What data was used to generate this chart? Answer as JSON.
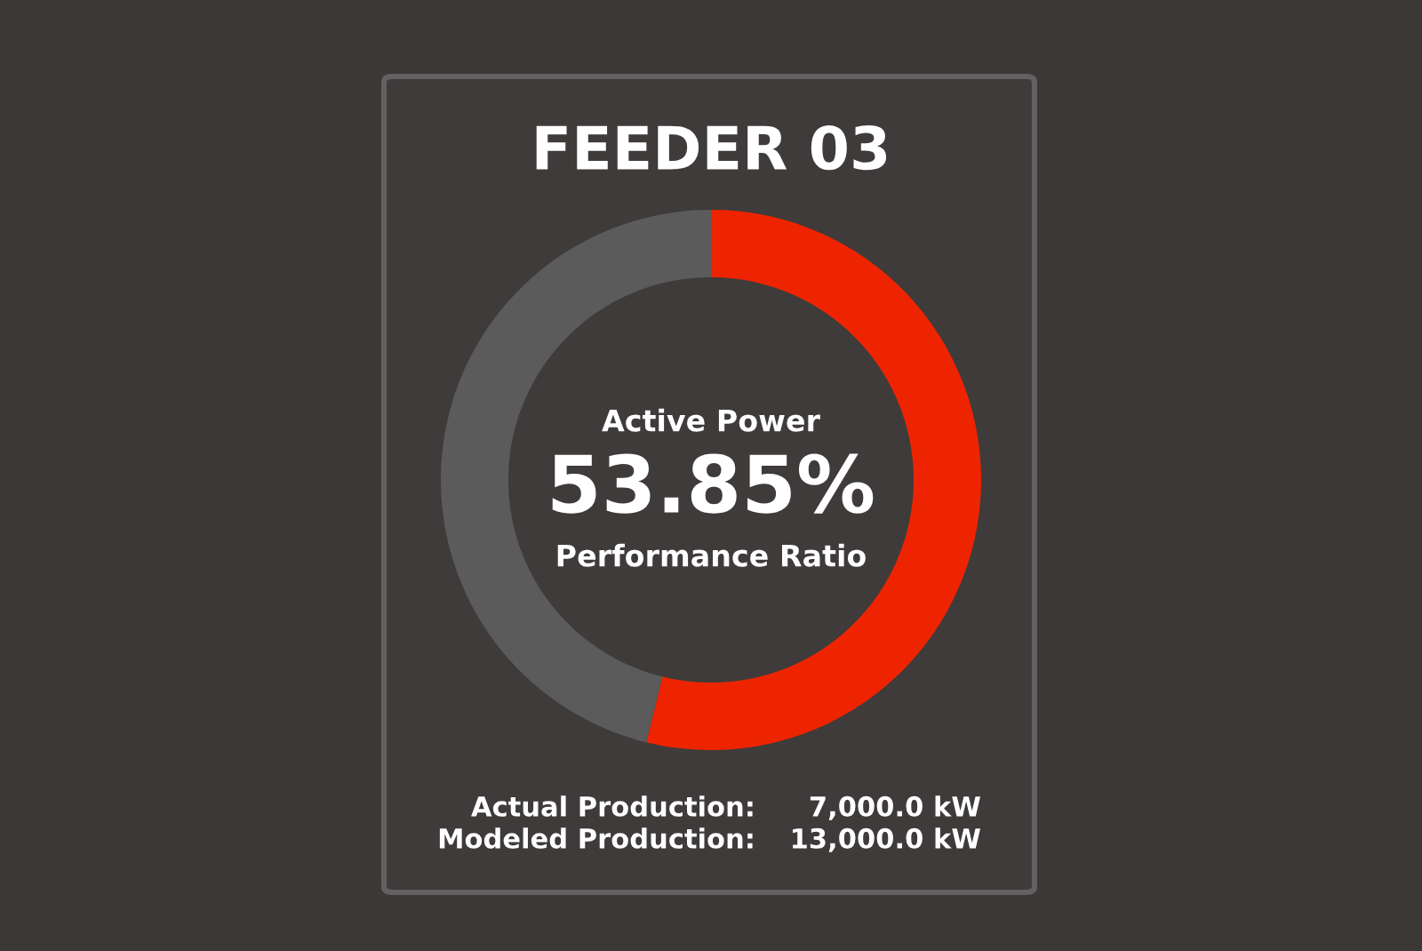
{
  "chart_data": {
    "type": "donut",
    "title": "FEEDER 03",
    "categories": [
      null,
      null
    ],
    "values": [
      53.85,
      46.15
    ],
    "colors": [
      "#ee2400",
      "#5b5b5b"
    ],
    "annotations": [
      "Active Power",
      "53.85%",
      "Performance Ratio",
      "Actual Production:",
      "7,000.0 kW",
      "Modeled Production:",
      "13,000.0 kW"
    ]
  }
}
